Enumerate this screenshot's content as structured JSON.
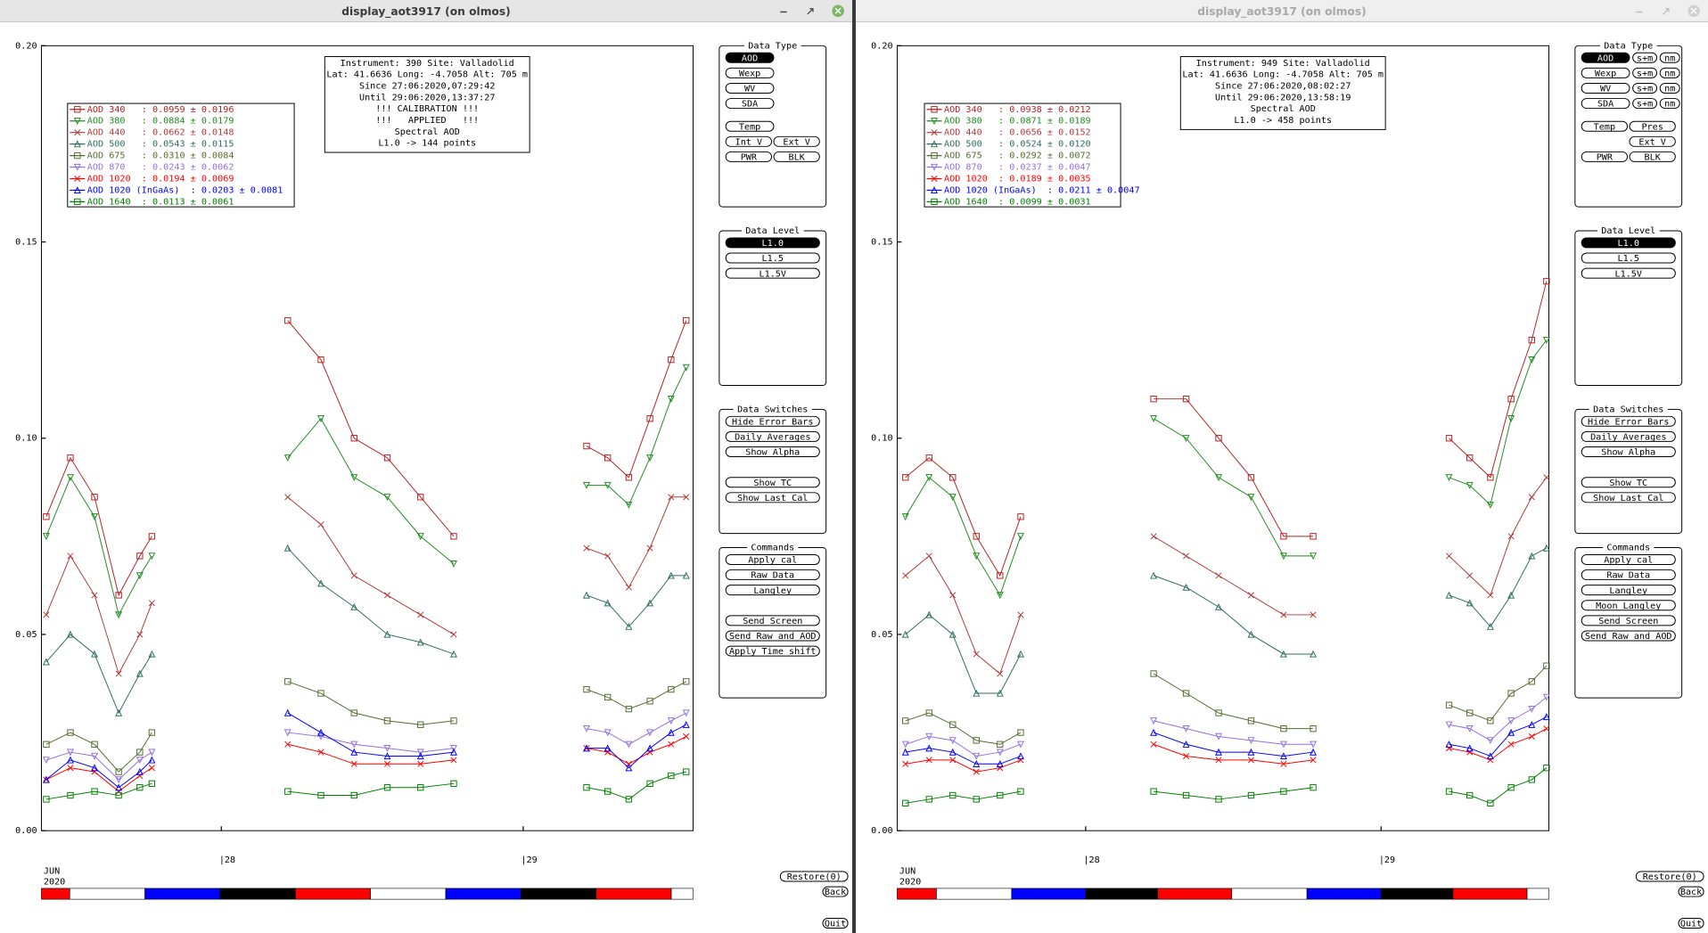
{
  "windows": [
    {
      "title": "display_aot3917 (on olmos)",
      "info": [
        "Instrument: 390 Site: Valladolid",
        "Lat: 41.6636 Long: -4.7058 Alt: 705 m",
        "Since 27:06:2020,07:29:42",
        "Until 29:06:2020,13:37:27",
        "!!! CALIBRATION !!!",
        "!!!   APPLIED   !!!",
        "Spectral AOD",
        "L1.0 -> 144 points"
      ],
      "panels": [
        {
          "title": "Data Type",
          "groups": [
            [
              [
                {
                  "label": "AOD",
                  "selected": true
                }
              ],
              [
                "Wexp"
              ],
              [
                "WV"
              ],
              [
                "SDA"
              ]
            ],
            [
              [
                "Temp"
              ],
              [
                "Int V",
                "Ext V"
              ],
              [
                "PWR",
                "BLK"
              ]
            ]
          ]
        },
        {
          "title": "Data Level",
          "groups": [
            [
              [
                {
                  "label": "L1.0",
                  "selected": true
                }
              ],
              [
                "L1.5"
              ],
              [
                "L1.5V"
              ]
            ]
          ]
        },
        {
          "title": "Data Switches",
          "groups": [
            [
              [
                "Hide Error Bars"
              ],
              [
                "Daily Averages"
              ],
              [
                "Show Alpha"
              ]
            ],
            [
              [
                "Show TC"
              ],
              [
                "Show Last Cal"
              ]
            ]
          ]
        },
        {
          "title": "Commands",
          "groups": [
            [
              [
                "Apply cal"
              ],
              [
                "Raw Data"
              ],
              [
                "Langley"
              ]
            ],
            [
              [
                "Send Screen"
              ],
              [
                "Send Raw and AOD"
              ],
              [
                "Apply Time shift"
              ]
            ]
          ]
        }
      ],
      "buttons": [
        "Restore(0)",
        "Back",
        "Quit"
      ]
    },
    {
      "title": "display_aot3917 (on olmos)",
      "info": [
        "Instrument: 949 Site: Valladolid",
        "Lat: 41.6636 Long: -4.7058 Alt: 705 m",
        "Since 27:06:2020,08:02:27",
        "Until 29:06:2020,13:58:19",
        "Spectral AOD",
        "L1.0 -> 458 points"
      ],
      "panels": [
        {
          "title": "Data Type",
          "groups": [
            [
              [
                {
                  "label": "AOD",
                  "selected": true
                },
                "s+m",
                "nm"
              ],
              [
                "Wexp",
                "s+m",
                "nm"
              ],
              [
                "WV",
                "s+m",
                "nm"
              ],
              [
                "SDA",
                "s+m",
                "nm"
              ]
            ],
            [
              [
                "Temp",
                "Pres"
              ],
              [
                null,
                "Ext V"
              ],
              [
                "PWR",
                "BLK"
              ]
            ]
          ]
        },
        {
          "title": "Data Level",
          "groups": [
            [
              [
                {
                  "label": "L1.0",
                  "selected": true
                }
              ],
              [
                "L1.5"
              ],
              [
                "L1.5V"
              ]
            ]
          ]
        },
        {
          "title": "Data Switches",
          "groups": [
            [
              [
                "Hide Error Bars"
              ],
              [
                "Daily Averages"
              ],
              [
                "Show Alpha"
              ]
            ],
            [
              [
                "Show TC"
              ],
              [
                "Show Last Cal"
              ]
            ]
          ]
        },
        {
          "title": "Commands",
          "groups": [
            [
              [
                "Apply cal"
              ],
              [
                "Raw Data"
              ],
              [
                "Langley"
              ],
              [
                "Moon Langley"
              ],
              [
                "Send Screen"
              ],
              [
                "Send Raw and AOD"
              ]
            ]
          ]
        }
      ],
      "buttons": [
        "Restore(0)",
        "Back",
        "Quit"
      ]
    }
  ],
  "chart_data": [
    {
      "type": "line",
      "month_label": "JUN",
      "year_label": "2020",
      "xlim": [
        27.404,
        29.563
      ],
      "xticks": [
        {
          "value": 28,
          "label": "|28"
        },
        {
          "value": 29,
          "label": "|29"
        }
      ],
      "ylim": [
        0,
        0.2
      ],
      "yticks": [
        {
          "value": 0,
          "label": "0.00"
        },
        {
          "value": 0.05,
          "label": "0.05"
        },
        {
          "value": 0.1,
          "label": "0.10"
        },
        {
          "value": 0.15,
          "label": "0.15"
        },
        {
          "value": 0.2,
          "label": "0.20"
        }
      ],
      "x": [
        27.42,
        27.5,
        27.58,
        27.66,
        27.73,
        27.77,
        27.95,
        28.22,
        28.33,
        28.44,
        28.55,
        28.66,
        28.77,
        29.0,
        29.21,
        29.28,
        29.35,
        29.42,
        29.49,
        29.54
      ],
      "series": [
        {
          "name": "AOD 340   : 0.0959 ± 0.0196",
          "color": "#b22222",
          "marker": "square",
          "values": [
            0.08,
            0.095,
            0.085,
            0.06,
            0.07,
            0.075,
            null,
            0.13,
            0.12,
            0.1,
            0.095,
            0.085,
            0.075,
            null,
            0.098,
            0.095,
            0.09,
            0.105,
            0.12,
            0.13
          ]
        },
        {
          "name": "AOD 380   : 0.0884 ± 0.0179",
          "color": "#228b22",
          "marker": "triangle-down",
          "values": [
            0.075,
            0.09,
            0.08,
            0.055,
            0.065,
            0.07,
            null,
            0.095,
            0.105,
            0.09,
            0.085,
            0.075,
            0.068,
            null,
            0.088,
            0.088,
            0.083,
            0.095,
            0.11,
            0.118
          ]
        },
        {
          "name": "AOD 440   : 0.0662 ± 0.0148",
          "color": "#b03a3a",
          "marker": "x",
          "values": [
            0.055,
            0.07,
            0.06,
            0.04,
            0.05,
            0.058,
            null,
            0.085,
            0.078,
            0.065,
            0.06,
            0.055,
            0.05,
            null,
            0.072,
            0.07,
            0.062,
            0.072,
            0.085,
            0.085
          ]
        },
        {
          "name": "AOD 500   : 0.0543 ± 0.0115",
          "color": "#2e6b5e",
          "marker": "triangle-up",
          "values": [
            0.043,
            0.05,
            0.045,
            0.03,
            0.04,
            0.045,
            null,
            0.072,
            0.063,
            0.057,
            0.05,
            0.048,
            0.045,
            null,
            0.06,
            0.058,
            0.052,
            0.058,
            0.065,
            0.065
          ]
        },
        {
          "name": "AOD 675   : 0.0310 ± 0.0084",
          "color": "#556b2f",
          "marker": "square",
          "values": [
            0.022,
            0.025,
            0.022,
            0.015,
            0.02,
            0.025,
            null,
            0.038,
            0.035,
            0.03,
            0.028,
            0.027,
            0.028,
            null,
            0.036,
            0.034,
            0.031,
            0.033,
            0.036,
            0.038
          ]
        },
        {
          "name": "AOD 870   : 0.0243 ± 0.0062",
          "color": "#9370db",
          "marker": "triangle-down",
          "values": [
            0.018,
            0.02,
            0.019,
            0.013,
            0.018,
            0.02,
            null,
            0.025,
            0.024,
            0.022,
            0.021,
            0.02,
            0.021,
            null,
            0.026,
            0.025,
            0.022,
            0.025,
            0.028,
            0.03
          ]
        },
        {
          "name": "AOD 1020  : 0.0194 ± 0.0069",
          "color": "#ff0000",
          "marker": "x",
          "values": [
            0.013,
            0.016,
            0.015,
            0.01,
            0.014,
            0.016,
            null,
            0.022,
            0.02,
            0.017,
            0.017,
            0.017,
            0.018,
            null,
            0.021,
            0.02,
            0.017,
            0.02,
            0.022,
            0.024
          ]
        },
        {
          "name": "AOD 1020 (InGaAs)  : 0.0203 ± 0.0081",
          "color": "#0000ff",
          "marker": "triangle-up",
          "values": [
            0.013,
            0.018,
            0.016,
            0.011,
            0.015,
            0.018,
            null,
            0.03,
            0.025,
            0.02,
            0.019,
            0.019,
            0.02,
            null,
            0.021,
            0.021,
            0.016,
            0.021,
            0.025,
            0.027
          ]
        },
        {
          "name": "AOD 1640  : 0.0113 ± 0.0061",
          "color": "#008000",
          "marker": "square",
          "values": [
            0.008,
            0.009,
            0.01,
            0.009,
            0.011,
            0.012,
            null,
            0.01,
            0.009,
            0.009,
            0.011,
            0.011,
            0.012,
            null,
            0.011,
            0.01,
            0.008,
            0.012,
            0.014,
            0.015
          ]
        }
      ]
    },
    {
      "type": "line",
      "month_label": "JUN",
      "year_label": "2020",
      "xlim": [
        27.362,
        29.568
      ],
      "xticks": [
        {
          "value": 28,
          "label": "|28"
        },
        {
          "value": 29,
          "label": "|29"
        }
      ],
      "ylim": [
        0,
        0.2
      ],
      "yticks": [
        {
          "value": 0,
          "label": "0.00"
        },
        {
          "value": 0.05,
          "label": "0.05"
        },
        {
          "value": 0.1,
          "label": "0.10"
        },
        {
          "value": 0.15,
          "label": "0.15"
        },
        {
          "value": 0.2,
          "label": "0.20"
        }
      ],
      "x": [
        27.39,
        27.47,
        27.55,
        27.63,
        27.71,
        27.78,
        27.95,
        28.23,
        28.34,
        28.45,
        28.56,
        28.67,
        28.77,
        29.0,
        29.23,
        29.3,
        29.37,
        29.44,
        29.51,
        29.56
      ],
      "series": [
        {
          "name": "AOD 340   : 0.0938 ± 0.0212",
          "color": "#b22222",
          "marker": "square",
          "values": [
            0.09,
            0.095,
            0.09,
            0.075,
            0.065,
            0.08,
            null,
            0.11,
            0.11,
            0.1,
            0.09,
            0.075,
            0.075,
            null,
            0.1,
            0.095,
            0.09,
            0.11,
            0.125,
            0.14
          ]
        },
        {
          "name": "AOD 380   : 0.0871 ± 0.0189",
          "color": "#228b22",
          "marker": "triangle-down",
          "values": [
            0.08,
            0.09,
            0.085,
            0.07,
            0.06,
            0.075,
            null,
            0.105,
            0.1,
            0.09,
            0.085,
            0.07,
            0.07,
            null,
            0.09,
            0.088,
            0.083,
            0.105,
            0.12,
            0.125
          ]
        },
        {
          "name": "AOD 440   : 0.0656 ± 0.0152",
          "color": "#b03a3a",
          "marker": "x",
          "values": [
            0.065,
            0.07,
            0.06,
            0.045,
            0.04,
            0.055,
            null,
            0.075,
            0.07,
            0.065,
            0.06,
            0.055,
            0.055,
            null,
            0.07,
            0.065,
            0.06,
            0.075,
            0.085,
            0.09
          ]
        },
        {
          "name": "AOD 500   : 0.0524 ± 0.0120",
          "color": "#2e6b5e",
          "marker": "triangle-up",
          "values": [
            0.05,
            0.055,
            0.05,
            0.035,
            0.035,
            0.045,
            null,
            0.065,
            0.062,
            0.057,
            0.05,
            0.045,
            0.045,
            null,
            0.06,
            0.058,
            0.052,
            0.06,
            0.07,
            0.072
          ]
        },
        {
          "name": "AOD 675   : 0.0292 ± 0.0072",
          "color": "#556b2f",
          "marker": "square",
          "values": [
            0.028,
            0.03,
            0.027,
            0.023,
            0.022,
            0.025,
            null,
            0.04,
            0.035,
            0.03,
            0.028,
            0.026,
            0.026,
            null,
            0.032,
            0.03,
            0.028,
            0.035,
            0.038,
            0.042
          ]
        },
        {
          "name": "AOD 870   : 0.0237 ± 0.0047",
          "color": "#9370db",
          "marker": "triangle-down",
          "values": [
            0.022,
            0.024,
            0.023,
            0.019,
            0.02,
            0.022,
            null,
            0.028,
            0.026,
            0.024,
            0.023,
            0.022,
            0.022,
            null,
            0.027,
            0.026,
            0.023,
            0.028,
            0.031,
            0.034
          ]
        },
        {
          "name": "AOD 1020  : 0.0189 ± 0.0035",
          "color": "#ff0000",
          "marker": "x",
          "values": [
            0.017,
            0.018,
            0.018,
            0.015,
            0.016,
            0.018,
            null,
            0.022,
            0.019,
            0.018,
            0.018,
            0.017,
            0.018,
            null,
            0.021,
            0.02,
            0.018,
            0.022,
            0.024,
            0.026
          ]
        },
        {
          "name": "AOD 1020 (InGaAs)  : 0.0211 ± 0.0047",
          "color": "#0000ff",
          "marker": "triangle-up",
          "values": [
            0.02,
            0.021,
            0.02,
            0.017,
            0.017,
            0.019,
            null,
            0.025,
            0.022,
            0.02,
            0.02,
            0.019,
            0.02,
            null,
            0.022,
            0.021,
            0.019,
            0.025,
            0.027,
            0.029
          ]
        },
        {
          "name": "AOD 1640  : 0.0099 ± 0.0031",
          "color": "#008000",
          "marker": "square",
          "values": [
            0.007,
            0.008,
            0.009,
            0.008,
            0.009,
            0.01,
            null,
            0.01,
            0.009,
            0.008,
            0.009,
            0.01,
            0.011,
            null,
            0.01,
            0.009,
            0.007,
            0.011,
            0.013,
            0.016
          ]
        }
      ]
    }
  ]
}
